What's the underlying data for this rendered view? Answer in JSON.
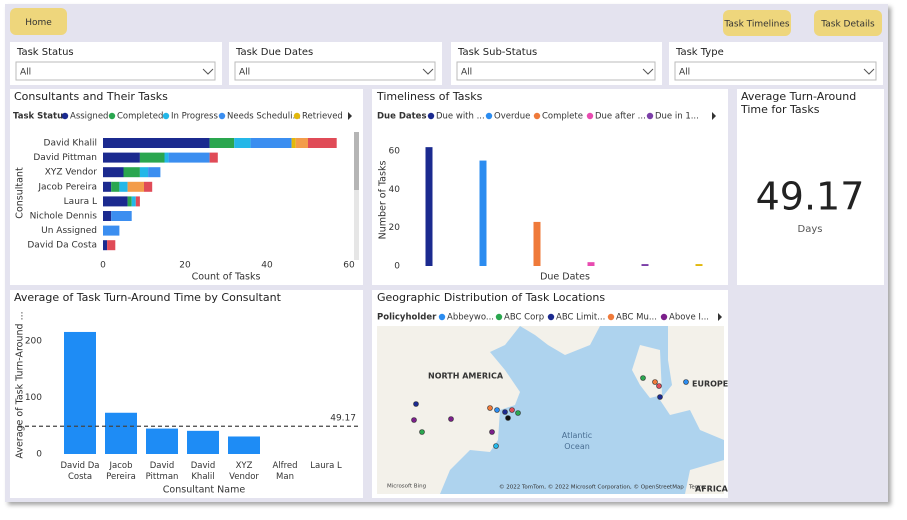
{
  "buttons": [
    "Home",
    "Task Timelines",
    "Task Details"
  ],
  "filters": [
    {
      "label": "Task Status",
      "value": "All"
    },
    {
      "label": "Task Due Dates",
      "value": "All"
    },
    {
      "label": "Task Sub-Status",
      "value": "All"
    },
    {
      "label": "Task Type",
      "value": "All"
    }
  ],
  "chart_data": [
    {
      "type": "hbar_stacked",
      "title": "Consultants and Their Tasks",
      "legend_title": "Task Status",
      "x_label": "Count of Tasks",
      "y_label": "Consultant",
      "categories": [
        "David Khalil",
        "David Pittman",
        "XYZ Vendor",
        "Jacob Pereira",
        "Laura L",
        "Nichole Dennis",
        "Un Assigned",
        "David Da Costa"
      ],
      "xlim": [
        0,
        61
      ],
      "xticks": [
        0,
        20,
        40,
        60
      ],
      "series": [
        {
          "name": "Assigned",
          "color": "#1b2a8f",
          "values": [
            26,
            9,
            5,
            2,
            6,
            2,
            0,
            1
          ]
        },
        {
          "name": "Completed",
          "color": "#2aa64f",
          "values": [
            6,
            6,
            4,
            2,
            1,
            0,
            0,
            0
          ]
        },
        {
          "name": "In Progress",
          "color": "#24b7e8",
          "values": [
            4,
            1,
            2,
            2,
            1,
            0,
            0,
            0
          ]
        },
        {
          "name": "Needs Scheduli...",
          "color": "#3b8ef0",
          "values": [
            10,
            10,
            3,
            0,
            0,
            5,
            4,
            0
          ]
        },
        {
          "name": "Retrieved",
          "color": "#e2b80c",
          "values": [
            1,
            0,
            0,
            0,
            0,
            0,
            0,
            0
          ]
        },
        {
          "name": null,
          "color": "#f39c4a",
          "values": [
            3,
            0,
            0,
            4,
            0,
            0,
            0,
            0
          ]
        },
        {
          "name": null,
          "color": "#e04b57",
          "values": [
            7,
            2,
            0,
            2,
            1,
            0,
            0,
            2
          ]
        }
      ]
    },
    {
      "type": "column",
      "title": "Timeliness of Tasks",
      "legend_title": "Due Dates",
      "x_label": "Due Dates",
      "y_label": "Number of Tasks",
      "ylim": [
        0,
        65
      ],
      "yticks": [
        0,
        20,
        40,
        60
      ],
      "series": [
        {
          "name": "Due with ...",
          "color": "#1b2a8f",
          "values": [
            62
          ]
        },
        {
          "name": "Overdue",
          "color": "#2b8cf0",
          "values": [
            55
          ]
        },
        {
          "name": "Complete",
          "color": "#ef7a3a",
          "values": [
            23
          ]
        },
        {
          "name": "Due after ...",
          "color": "#e84bb0",
          "values": [
            2
          ]
        },
        {
          "name": "Due in 1...",
          "color": "#7b3fa8",
          "values": [
            1
          ]
        },
        {
          "name": null,
          "color": "#e2b80c",
          "values": [
            1
          ]
        }
      ]
    },
    {
      "type": "card",
      "title": "Average Turn-Around Time for Tasks",
      "value": 49.17,
      "unit": "Days"
    },
    {
      "type": "bar",
      "title": "Average of Task Turn-Around Time by Consultant",
      "x_label": "Consultant Name",
      "y_label": "Average of Task Turn-Around ...",
      "categories": [
        "David Da Costa",
        "Jacob Pereira",
        "David Pittman",
        "David Khalil",
        "XYZ Vendor",
        "Alfred Man",
        "Laura L"
      ],
      "values": [
        216,
        73,
        45,
        41,
        31,
        0,
        0
      ],
      "color": "#1e8cf5",
      "ylim": [
        0,
        240
      ],
      "yticks": [
        0,
        100,
        200
      ],
      "reference_line": {
        "value": 49.17
      }
    },
    {
      "type": "map",
      "title": "Geographic Distribution of Task Locations",
      "legend_title": "Policyholder",
      "legend": [
        {
          "name": "Abbeywo...",
          "color": "#2b8cf0"
        },
        {
          "name": "ABC Corp",
          "color": "#2aa64f"
        },
        {
          "name": "ABC Limit...",
          "color": "#1b2a8f"
        },
        {
          "name": "ABC Mu...",
          "color": "#ef7a3a"
        },
        {
          "name": "Above I...",
          "color": "#7b1f8a"
        }
      ],
      "labels": [
        "NORTH AMERICA",
        "EUROPE",
        "Atlantic Ocean",
        "AFRICA"
      ],
      "attribution": [
        "Microsoft Bing",
        "© 2022 TomTom, © 2022 Microsoft Corporation, © OpenStreetMap",
        "Terms"
      ]
    }
  ]
}
